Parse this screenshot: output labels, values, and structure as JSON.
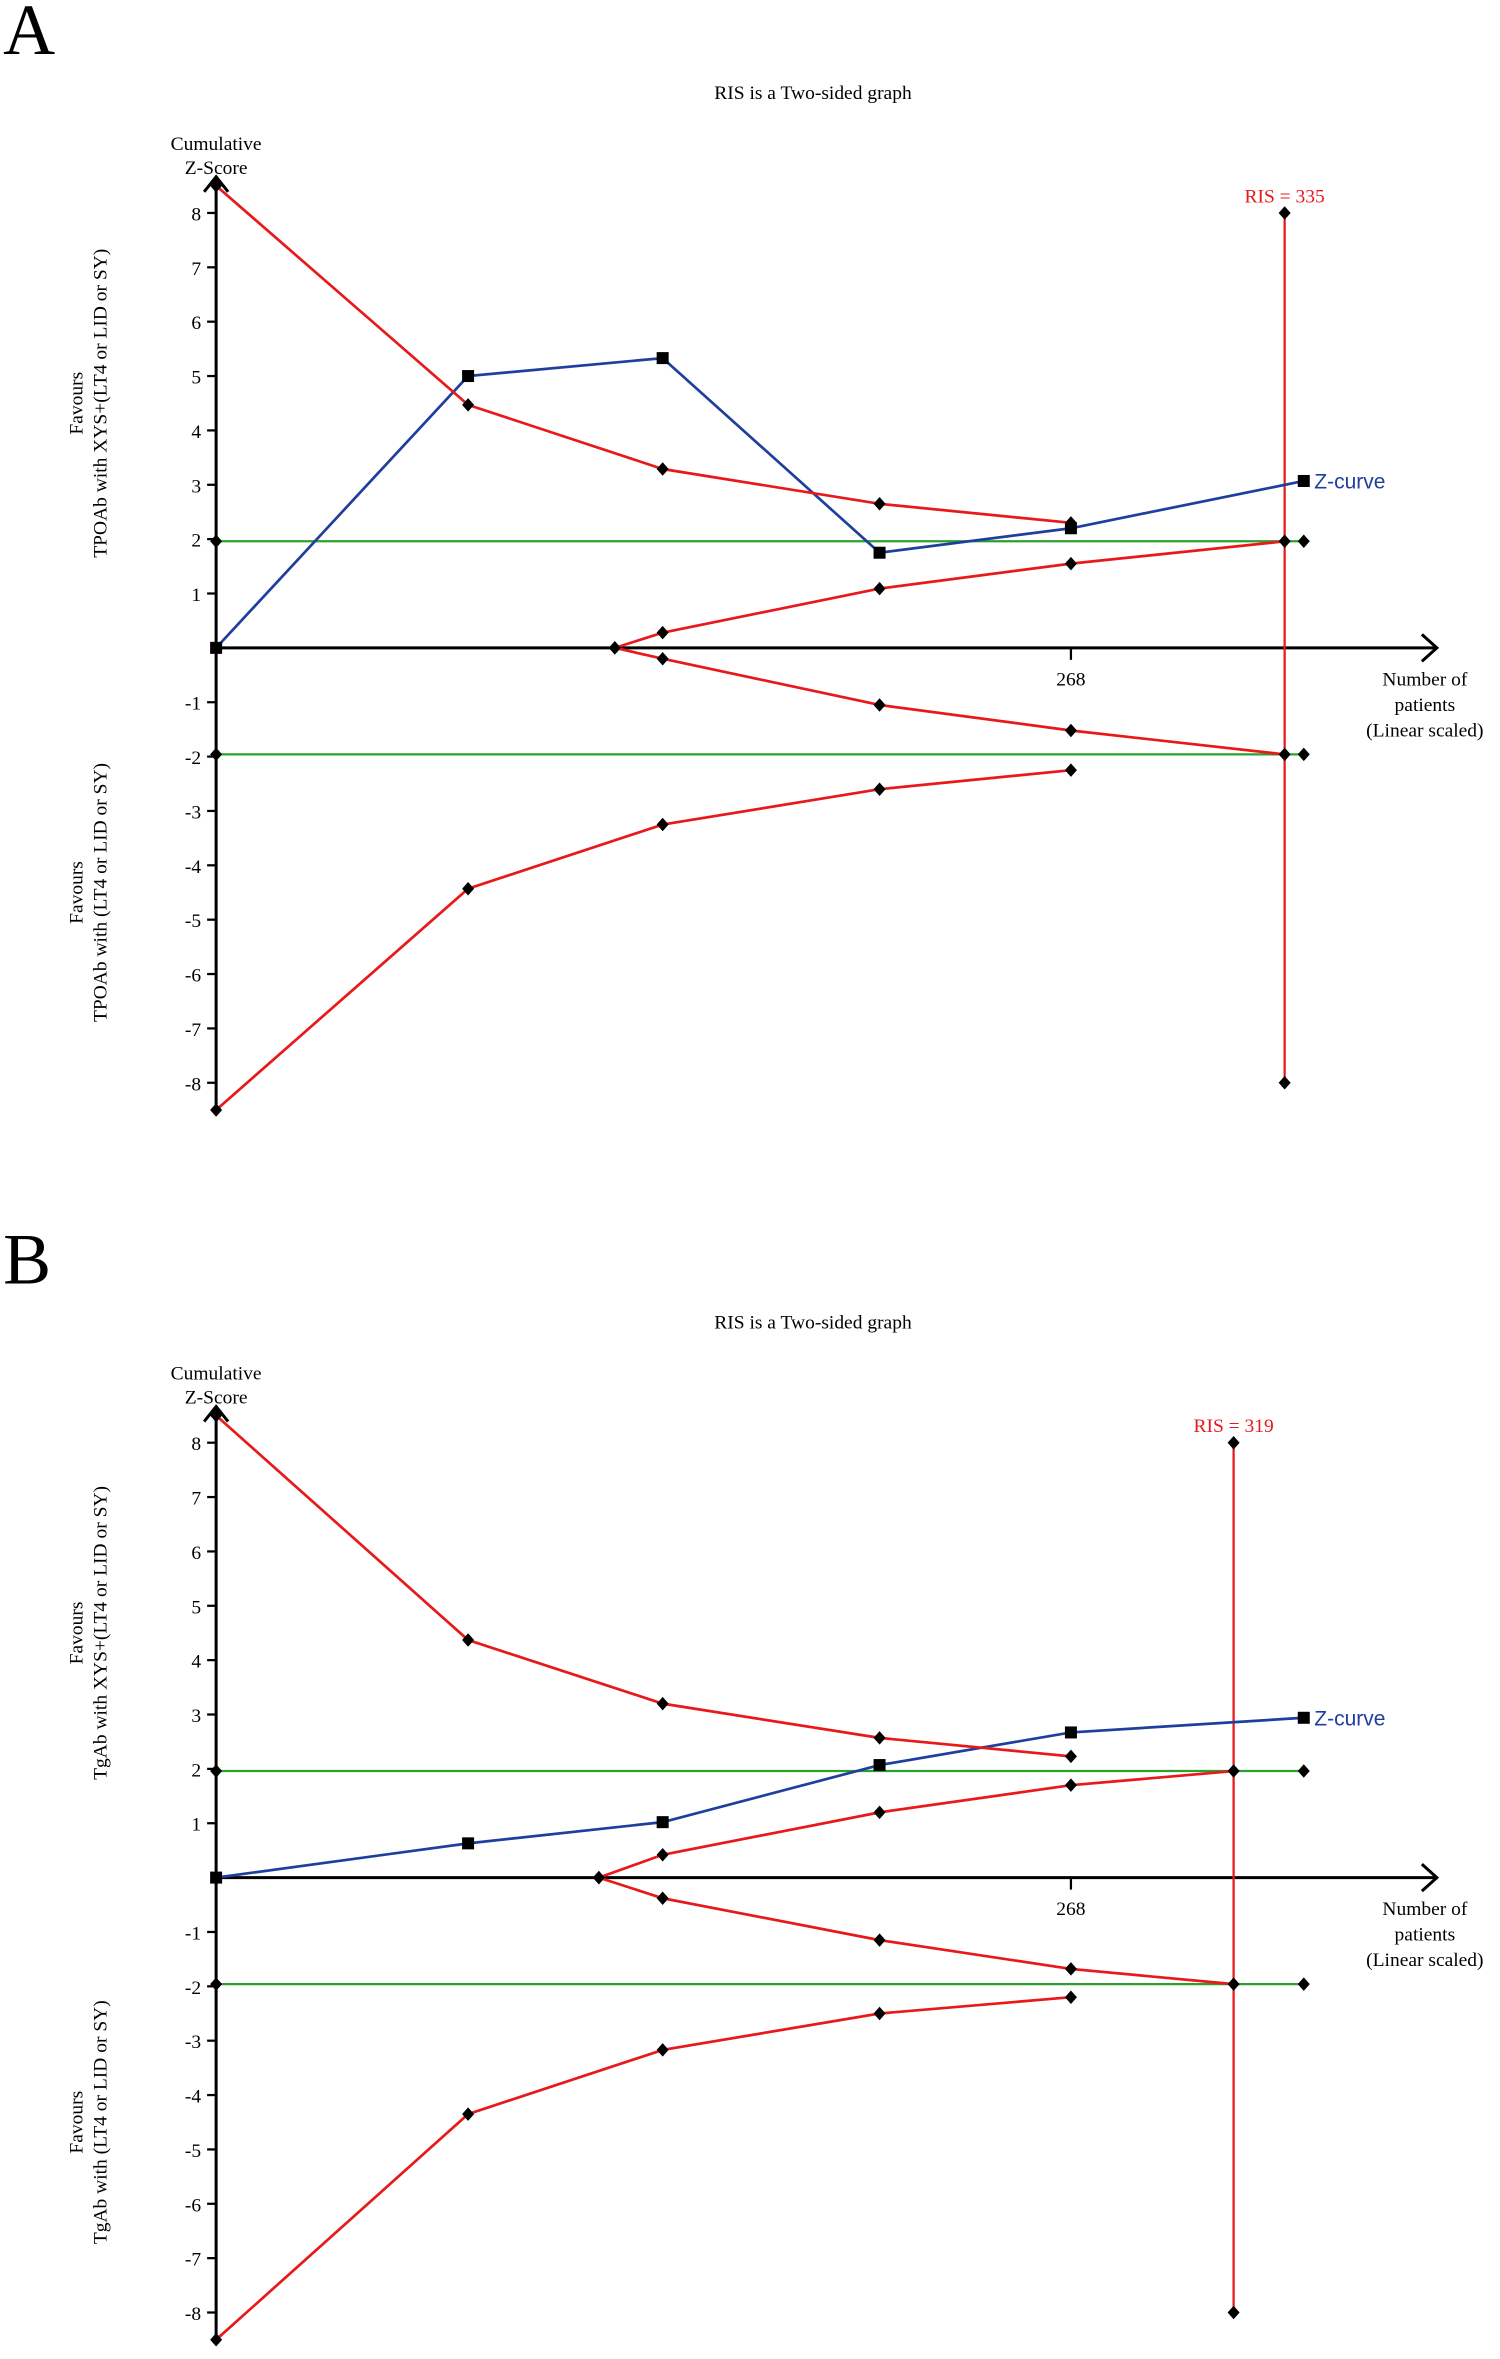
{
  "chart_data": [
    {
      "panel": "A",
      "type": "line",
      "title": "RIS is a Two-sided graph",
      "ylabel_lines": [
        "Cumulative",
        "Z-Score"
      ],
      "xlabel_lines": [
        "Number of",
        "patients",
        "(Linear scaled)"
      ],
      "upper_label_lines": [
        "Favours",
        "TPOAb with XYS+(LT4 or LID or SY)"
      ],
      "lower_label_lines": [
        "Favours",
        "TPOAb with (LT4 or LID or SY)"
      ],
      "yticks": [
        "8",
        "7",
        "6",
        "5",
        "4",
        "3",
        "2",
        "1",
        "-1",
        "-2",
        "-3",
        "-4",
        "-5",
        "-6",
        "-7",
        "-8"
      ],
      "ytick_values": [
        8,
        7,
        6,
        5,
        4,
        3,
        2,
        1,
        -1,
        -2,
        -3,
        -4,
        -5,
        -6,
        -7,
        -8
      ],
      "xtick_label": "268",
      "xtick_value": 268,
      "ylim": [
        -8.5,
        8.5
      ],
      "xlim": [
        0,
        341
      ],
      "ris_label": "RIS = 335",
      "ris": 335,
      "zcurve_label": "Z-curve",
      "series": [
        {
          "name": "Z-curve",
          "color": "#1f3f9f",
          "marker": "square",
          "x": [
            0,
            79,
            140,
            208,
            268,
            341
          ],
          "y": [
            0,
            5.0,
            5.33,
            1.75,
            2.2,
            3.07
          ]
        },
        {
          "name": "Upper monitoring boundary",
          "color": "#e8191b",
          "marker": "diamond",
          "x": [
            0,
            79,
            140,
            208,
            268
          ],
          "y": [
            8.5,
            4.47,
            3.29,
            2.65,
            2.3
          ]
        },
        {
          "name": "Lower monitoring boundary",
          "color": "#e8191b",
          "marker": "diamond",
          "x": [
            0,
            79,
            140,
            208,
            268
          ],
          "y": [
            -8.5,
            -4.43,
            -3.25,
            -2.6,
            -2.25
          ]
        },
        {
          "name": "Upper futility boundary",
          "color": "#e8191b",
          "marker": "diamond",
          "x": [
            125,
            140,
            208,
            268,
            335
          ],
          "y": [
            0,
            0.28,
            1.09,
            1.55,
            1.96
          ]
        },
        {
          "name": "Lower futility boundary",
          "color": "#e8191b",
          "marker": "diamond",
          "x": [
            125,
            140,
            208,
            268,
            335
          ],
          "y": [
            0,
            -0.2,
            -1.05,
            -1.52,
            -1.96
          ]
        }
      ],
      "conventional_boundary": 1.96,
      "colors": {
        "conventional": "#2ca02c",
        "ris": "#e8191b",
        "axis": "#000000"
      }
    },
    {
      "panel": "B",
      "type": "line",
      "title": "RIS is a Two-sided graph",
      "ylabel_lines": [
        "Cumulative",
        "Z-Score"
      ],
      "xlabel_lines": [
        "Number of",
        "patients",
        "(Linear scaled)"
      ],
      "upper_label_lines": [
        "Favours",
        "TgAb with XYS+(LT4 or LID or SY)"
      ],
      "lower_label_lines": [
        "Favours",
        "TgAb with (LT4 or LID or SY)"
      ],
      "yticks": [
        "8",
        "7",
        "6",
        "5",
        "4",
        "3",
        "2",
        "1",
        "-1",
        "-2",
        "-3",
        "-4",
        "-5",
        "-6",
        "-7",
        "-8"
      ],
      "ytick_values": [
        8,
        7,
        6,
        5,
        4,
        3,
        2,
        1,
        -1,
        -2,
        -3,
        -4,
        -5,
        -6,
        -7,
        -8
      ],
      "xtick_label": "268",
      "xtick_value": 268,
      "ylim": [
        -8.5,
        8.5
      ],
      "xlim": [
        0,
        341
      ],
      "ris_label": "RIS = 319",
      "ris": 319,
      "zcurve_label": "Z-curve",
      "series": [
        {
          "name": "Z-curve",
          "color": "#1f3f9f",
          "marker": "square",
          "x": [
            0,
            79,
            140,
            208,
            268,
            341
          ],
          "y": [
            0,
            0.63,
            1.02,
            2.07,
            2.67,
            2.94
          ]
        },
        {
          "name": "Upper monitoring boundary",
          "color": "#e8191b",
          "marker": "diamond",
          "x": [
            0,
            79,
            140,
            208,
            268
          ],
          "y": [
            8.5,
            4.37,
            3.2,
            2.57,
            2.23
          ]
        },
        {
          "name": "Lower monitoring boundary",
          "color": "#e8191b",
          "marker": "diamond",
          "x": [
            0,
            79,
            140,
            208,
            268
          ],
          "y": [
            -8.5,
            -4.35,
            -3.17,
            -2.5,
            -2.2
          ]
        },
        {
          "name": "Upper futility boundary",
          "color": "#e8191b",
          "marker": "diamond",
          "x": [
            120,
            140,
            208,
            268,
            319
          ],
          "y": [
            0,
            0.42,
            1.2,
            1.7,
            1.96
          ]
        },
        {
          "name": "Lower futility boundary",
          "color": "#e8191b",
          "marker": "diamond",
          "x": [
            120,
            140,
            208,
            268,
            319
          ],
          "y": [
            0,
            -0.38,
            -1.15,
            -1.68,
            -1.96
          ]
        }
      ],
      "conventional_boundary": 1.96,
      "colors": {
        "conventional": "#2ca02c",
        "ris": "#e8191b",
        "axis": "#000000"
      }
    }
  ],
  "panels": [
    "A",
    "B"
  ]
}
